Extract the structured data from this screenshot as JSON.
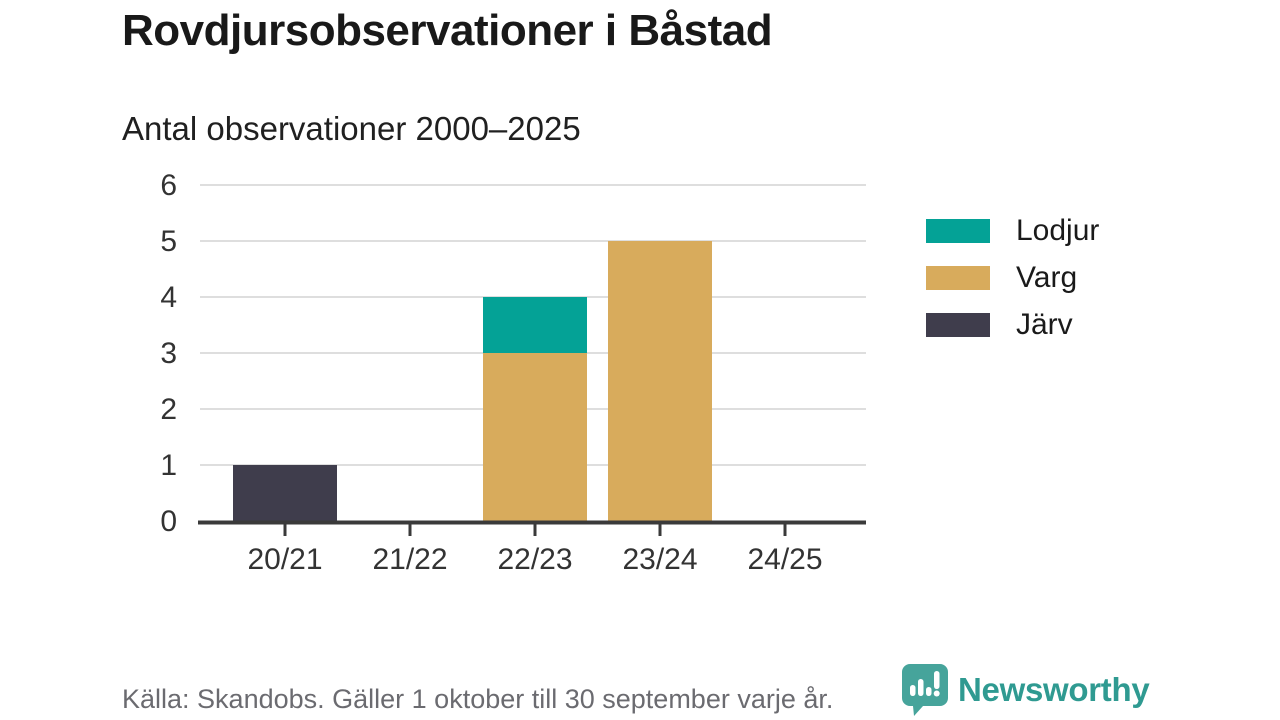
{
  "header": {
    "title": "Rovdjursobservationer i Båstad",
    "subtitle": "Antal observationer 2000–2025"
  },
  "chart_data": {
    "type": "bar",
    "stacked": true,
    "title": "Rovdjursobservationer i Båstad",
    "subtitle": "Antal observationer 2000–2025",
    "categories": [
      "20/21",
      "21/22",
      "22/23",
      "23/24",
      "24/25"
    ],
    "series": [
      {
        "name": "Lodjur",
        "color": "#04a296",
        "values": [
          0,
          0,
          1,
          0,
          0
        ]
      },
      {
        "name": "Varg",
        "color": "#d8ab5c",
        "values": [
          0,
          0,
          3,
          5,
          0
        ]
      },
      {
        "name": "Järv",
        "color": "#3f3d4c",
        "values": [
          1,
          0,
          0,
          0,
          0
        ]
      }
    ],
    "xlabel": "",
    "ylabel": "",
    "ylim": [
      0,
      6
    ],
    "yticks": [
      0,
      1,
      2,
      3,
      4,
      5,
      6
    ],
    "grid": true,
    "legend_position": "right"
  },
  "legend": {
    "items": [
      {
        "label": "Lodjur",
        "color": "#04a296"
      },
      {
        "label": "Varg",
        "color": "#d8ab5c"
      },
      {
        "label": "Järv",
        "color": "#3f3d4c"
      }
    ]
  },
  "footer": {
    "source": "Källa: Skandobs. Gäller 1 oktober till 30 september varje år.",
    "brand": "Newsworthy"
  },
  "colors": {
    "axis": "#3a3a3a",
    "gridline": "#dedede",
    "tick_label": "#333333",
    "title_text": "#191919",
    "source_text": "#6b6b70",
    "brand_icon": "#46a49b",
    "brand_text": "#2f9a91"
  }
}
